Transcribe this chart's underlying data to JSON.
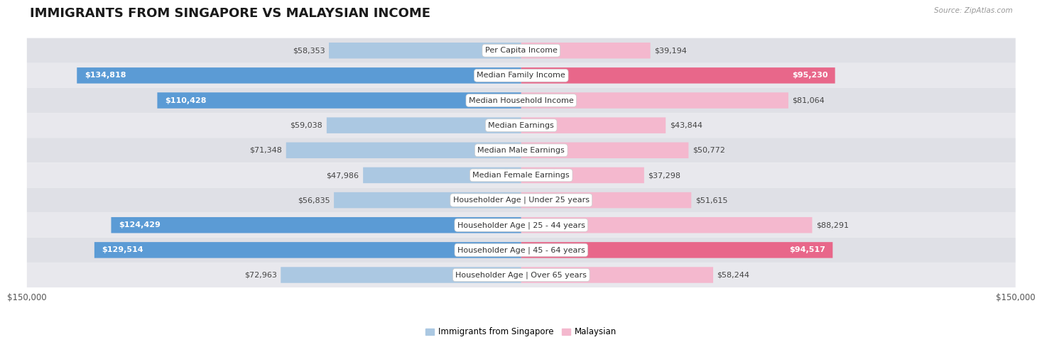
{
  "title": "IMMIGRANTS FROM SINGAPORE VS MALAYSIAN INCOME",
  "source": "Source: ZipAtlas.com",
  "categories": [
    "Per Capita Income",
    "Median Family Income",
    "Median Household Income",
    "Median Earnings",
    "Median Male Earnings",
    "Median Female Earnings",
    "Householder Age | Under 25 years",
    "Householder Age | 25 - 44 years",
    "Householder Age | 45 - 64 years",
    "Householder Age | Over 65 years"
  ],
  "singapore_values": [
    58353,
    134818,
    110428,
    59038,
    71348,
    47986,
    56835,
    124429,
    129514,
    72963
  ],
  "malaysian_values": [
    39194,
    95230,
    81064,
    43844,
    50772,
    37298,
    51615,
    88291,
    94517,
    58244
  ],
  "singapore_labels": [
    "$58,353",
    "$134,818",
    "$110,428",
    "$59,038",
    "$71,348",
    "$47,986",
    "$56,835",
    "$124,429",
    "$129,514",
    "$72,963"
  ],
  "malaysian_labels": [
    "$39,194",
    "$95,230",
    "$81,064",
    "$43,844",
    "$50,772",
    "$37,298",
    "$51,615",
    "$88,291",
    "$94,517",
    "$58,244"
  ],
  "sg_color_light": "#abc8e2",
  "sg_color_strong": "#5b9bd5",
  "my_color_light": "#f4b8ce",
  "my_color_strong": "#e8678a",
  "row_bg": "#e8e8ec",
  "row_inner_bg_odd": "#f5f5f7",
  "row_inner_bg_even": "#eaeaee",
  "max_value": 150000,
  "bar_height": 0.62,
  "sg_white_threshold": 90000,
  "my_white_threshold": 90000,
  "title_fontsize": 13,
  "label_fontsize": 8,
  "category_fontsize": 8,
  "legend_fontsize": 8.5,
  "axis_label": "$150,000"
}
